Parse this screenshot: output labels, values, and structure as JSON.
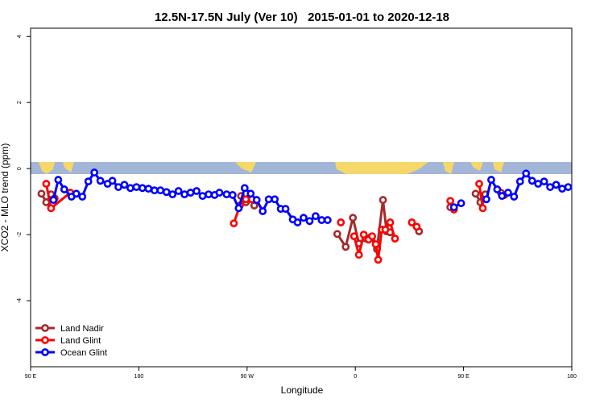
{
  "chart_data": {
    "type": "line",
    "title": "12.5N-17.5N July (Ver 10)   2015-01-01 to 2020-12-18",
    "x_label": "Longitude",
    "y_label": "XCO2 - MLO trend (ppm)",
    "xlim": [
      90,
      540
    ],
    "ylim": [
      -6,
      4.25
    ],
    "xticks": [
      {
        "value": 90,
        "label": "90 E"
      },
      {
        "value": 180,
        "label": "180"
      },
      {
        "value": 270,
        "label": "90 W"
      },
      {
        "value": 360,
        "label": "0"
      },
      {
        "value": 450,
        "label": "90 E"
      },
      {
        "value": 540,
        "label": "180"
      }
    ],
    "yticks": [
      4,
      2,
      0,
      -2,
      -4
    ],
    "legend_position": "lower left",
    "series": [
      {
        "name": "Land Nadir",
        "color": "#a52a2a",
        "x": [
          99,
          103,
          107,
          110,
          null,
          265,
          269,
          272,
          276,
          null,
          345,
          352,
          358,
          363,
          369,
          373,
          378,
          383,
          386,
          389,
          null,
          413,
          null,
          439,
          null,
          460,
          464,
          468,
          null,
          481
        ],
        "values": [
          -0.76,
          -1.02,
          -0.78,
          -0.9,
          null,
          -0.83,
          -1.02,
          -0.88,
          -1.12,
          null,
          -1.98,
          -2.37,
          -1.49,
          -2.27,
          -2.12,
          -2.07,
          -2.44,
          -0.95,
          -1.9,
          -1.93,
          null,
          -1.9,
          null,
          -1.17,
          null,
          -0.76,
          -1.02,
          -0.78,
          null,
          -0.73
        ]
      },
      {
        "name": "Land Glint",
        "color": "#ff0000",
        "x": [
          103,
          107,
          123,
          null,
          259,
          264,
          269,
          274,
          null,
          348,
          null,
          359,
          363,
          367,
          371,
          374,
          377,
          379,
          382,
          385,
          389,
          393,
          null,
          407,
          411,
          null,
          439,
          442,
          null,
          463,
          466,
          null,
          484
        ],
        "values": [
          -0.46,
          -1.2,
          -0.73,
          null,
          -1.66,
          -1.12,
          -0.93,
          -0.93,
          null,
          -1.63,
          null,
          -2.05,
          -2.61,
          -2.0,
          -2.15,
          -2.05,
          -2.29,
          -2.76,
          -1.85,
          -1.85,
          -1.63,
          -2.12,
          null,
          -1.63,
          -1.76,
          null,
          -0.98,
          -1.24,
          null,
          -0.46,
          -1.2,
          null,
          -0.8
        ]
      },
      {
        "name": "Ocean Glint",
        "color": "#0000ff",
        "x": [
          109,
          113,
          118,
          124,
          128,
          133,
          138,
          143,
          148,
          154,
          158,
          163,
          168,
          173,
          178,
          183,
          188,
          193,
          198,
          203,
          208,
          213,
          218,
          223,
          228,
          233,
          238,
          243,
          247,
          253,
          258,
          263,
          268,
          273,
          278,
          283,
          288,
          293,
          298,
          302,
          308,
          312,
          317,
          322,
          327,
          332,
          337,
          null,
          442,
          448,
          null,
          469,
          473,
          478,
          482,
          487,
          492,
          497,
          502,
          507,
          512,
          517,
          522,
          527,
          532,
          537
        ],
        "values": [
          -0.95,
          -0.34,
          -0.63,
          -0.85,
          -0.76,
          -0.85,
          -0.39,
          -0.12,
          -0.37,
          -0.46,
          -0.37,
          -0.56,
          -0.49,
          -0.59,
          -0.56,
          -0.59,
          -0.61,
          -0.66,
          -0.66,
          -0.71,
          -0.78,
          -0.68,
          -0.78,
          -0.73,
          -0.68,
          -0.83,
          -0.78,
          -0.8,
          -0.73,
          -0.78,
          -0.8,
          -1.2,
          -0.59,
          -0.76,
          -0.95,
          -1.29,
          -0.93,
          -0.93,
          -1.22,
          -1.22,
          -1.54,
          -1.63,
          -1.49,
          -1.59,
          -1.44,
          -1.56,
          -1.56,
          null,
          -1.17,
          -1.05,
          null,
          -0.93,
          -0.34,
          -0.63,
          -0.83,
          -0.73,
          -0.85,
          -0.39,
          -0.15,
          -0.37,
          -0.46,
          -0.39,
          -0.56,
          -0.49,
          -0.61,
          -0.56
        ]
      }
    ]
  }
}
